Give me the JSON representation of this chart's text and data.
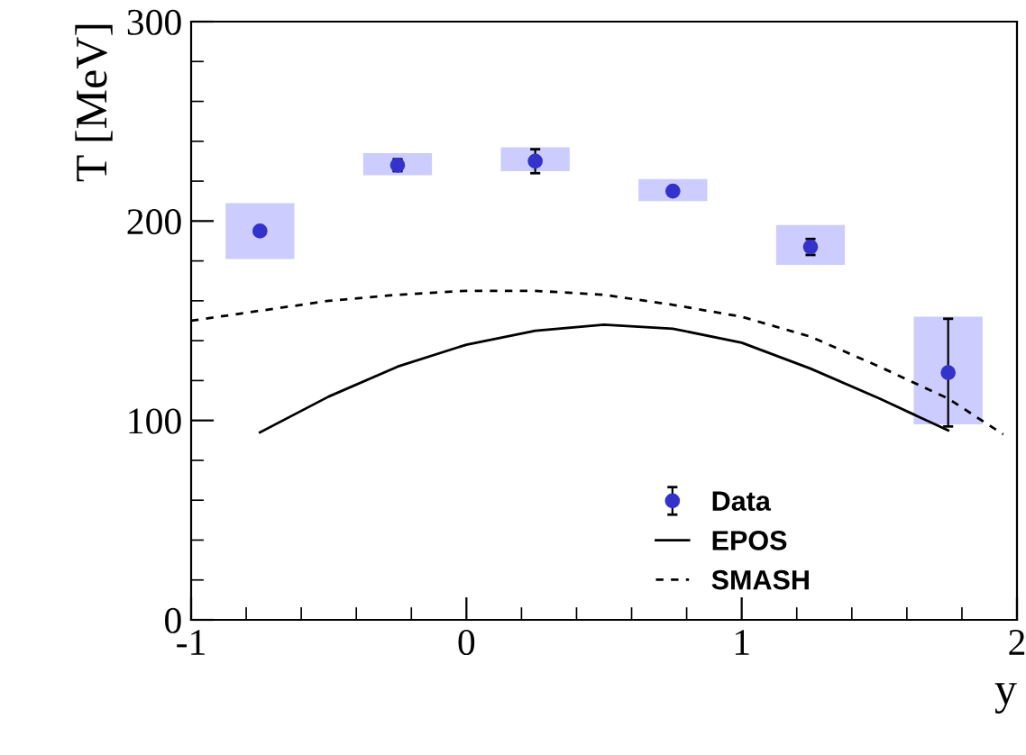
{
  "chart_data": {
    "type": "scatter",
    "xlabel": "y",
    "ylabel": "T [MeV]",
    "xlim": [
      -1,
      2
    ],
    "xticks": [
      -1,
      0,
      1,
      2
    ],
    "ylim": [
      0,
      300
    ],
    "yticks": [
      0,
      100,
      200,
      300
    ],
    "grid": false,
    "legend": "bottom right",
    "series": [
      {
        "type": "bar",
        "color": "#ccccff",
        "x": [
          -0.75,
          -0.25,
          0.25,
          0.75,
          1.25,
          1.75
        ],
        "base": [
          181,
          223,
          225,
          210,
          178,
          98
        ],
        "values": [
          28,
          11,
          12,
          11,
          20,
          54
        ]
      },
      {
        "name": "Data",
        "color": "#3333cc",
        "marker": "circle",
        "x": [
          -0.75,
          -0.25,
          0.25,
          0.75,
          1.25,
          1.75
        ],
        "values": [
          195,
          228,
          230,
          215,
          187,
          124
        ],
        "errors": [
          null,
          3,
          6,
          null,
          4,
          27
        ]
      },
      {
        "type": "line",
        "name": "EPOS",
        "color": "#000000",
        "line_style": "solid",
        "x": [
          -0.75,
          -0.5,
          -0.25,
          0,
          0.25,
          0.5,
          0.75,
          1.0,
          1.25,
          1.5,
          1.75
        ],
        "values": [
          94,
          112,
          127,
          138,
          145,
          148,
          146,
          139,
          126,
          111,
          95
        ]
      },
      {
        "type": "line",
        "name": "SMASH",
        "color": "#000000",
        "line_style": "dashed",
        "x": [
          -1,
          -0.75,
          -0.5,
          -0.25,
          0,
          0.25,
          0.5,
          0.75,
          1.0,
          1.25,
          1.5,
          1.75,
          1.95
        ],
        "values": [
          150,
          155,
          160,
          163,
          165,
          165,
          163,
          158,
          152,
          142,
          127,
          111,
          93
        ]
      }
    ]
  }
}
